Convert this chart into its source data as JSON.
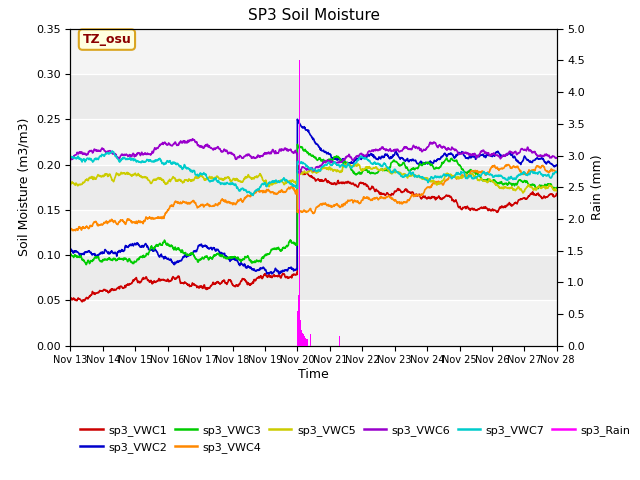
{
  "title": "SP3 Soil Moisture",
  "ylabel_left": "Soil Moisture (m3/m3)",
  "ylabel_right": "Rain (mm)",
  "xlabel": "Time",
  "ylim_left": [
    0.0,
    0.35
  ],
  "ylim_right": [
    0.0,
    5.0
  ],
  "bg_color": "#ebebeb",
  "annotation_label": "TZ_osu",
  "colors": {
    "sp3_VWC1": "#cc0000",
    "sp3_VWC2": "#0000cc",
    "sp3_VWC3": "#00cc00",
    "sp3_VWC4": "#ff8800",
    "sp3_VWC5": "#cccc00",
    "sp3_VWC6": "#9900cc",
    "sp3_VWC7": "#00cccc",
    "sp3_Rain": "#ff00ff"
  },
  "tick_labels": [
    "Nov 13",
    "Nov 14",
    "Nov 15",
    "Nov 16",
    "Nov 17",
    "Nov 18",
    "Nov 19",
    "Nov 20",
    "Nov 21",
    "Nov 22",
    "Nov 23",
    "Nov 24",
    "Nov 25",
    "Nov 26",
    "Nov 27",
    "Nov 28"
  ],
  "yticks_left": [
    0.0,
    0.05,
    0.1,
    0.15,
    0.2,
    0.25,
    0.3,
    0.35
  ],
  "yticks_right": [
    0.0,
    0.5,
    1.0,
    1.5,
    2.0,
    2.5,
    3.0,
    3.5,
    4.0,
    4.5,
    5.0
  ],
  "legend_row1": [
    "sp3_VWC1",
    "sp3_VWC2",
    "sp3_VWC3",
    "sp3_VWC4",
    "sp3_VWC5",
    "sp3_VWC6"
  ],
  "legend_row2": [
    "sp3_VWC7",
    "sp3_Rain"
  ]
}
